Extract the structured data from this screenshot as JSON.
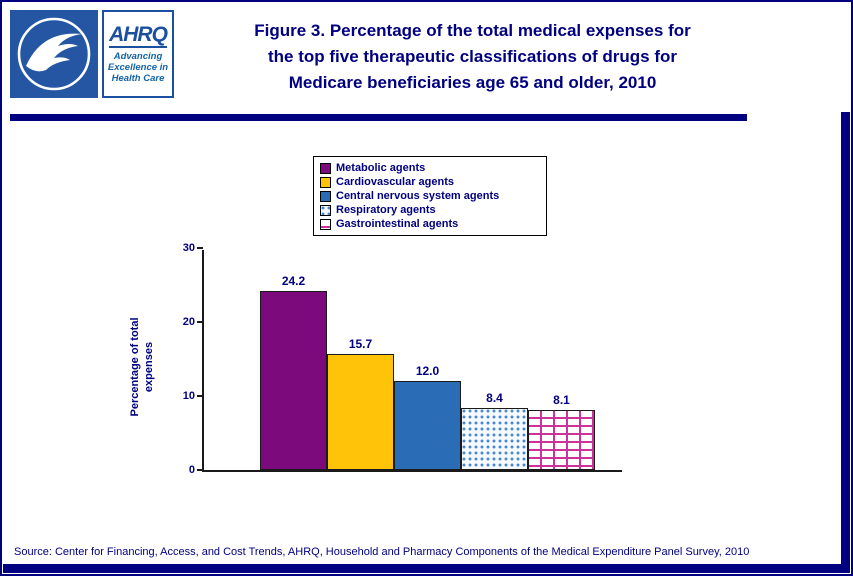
{
  "page": {
    "title_lines": [
      "Figure 3. Percentage of the total medical expenses for",
      "the top five therapeutic classifications of drugs for",
      "Medicare beneficiaries age 65 and older, 2010"
    ],
    "source": "Source: Center for Financing, Access, and Cost Trends, AHRQ,  Household and Pharmacy Components of the Medical Expenditure Panel Survey,  2010"
  },
  "logos": {
    "ahrq_name": "AHRQ",
    "ahrq_tagline_lines": [
      "Advancing",
      "Excellence in",
      "Health Care"
    ]
  },
  "colors": {
    "accent_navy": "#000080"
  },
  "chart_data": {
    "type": "bar",
    "title": "Figure 3. Percentage of the total medical expenses for the top five therapeutic classifications of drugs for Medicare beneficiaries age 65 and older, 2010",
    "categories": [
      "Metabolic agents",
      "Cardiovascular agents",
      "Central nervous system agents",
      "Respiratory agents",
      "Gastrointestinal agents"
    ],
    "values": [
      24.2,
      15.7,
      12.0,
      8.4,
      8.1
    ],
    "value_labels": [
      "24.2",
      "15.7",
      "12.0",
      "8.4",
      "8.1"
    ],
    "xlabel": "",
    "ylabel": "Percentage of total expenses",
    "ylabel_lines": [
      "Percentage of total",
      "expenses"
    ],
    "ylim": [
      0,
      30
    ],
    "yticks": [
      0,
      10,
      20,
      30
    ],
    "grid": false,
    "legend_position": "top-center",
    "bar_styles": [
      {
        "pattern": "solid",
        "color": "#7d0a7d"
      },
      {
        "pattern": "solid",
        "color": "#ffc409"
      },
      {
        "pattern": "solid",
        "color": "#2a6cb5"
      },
      {
        "pattern": "dots",
        "color": "#4a86c8"
      },
      {
        "pattern": "bricks",
        "color": "#cc3399"
      }
    ]
  }
}
